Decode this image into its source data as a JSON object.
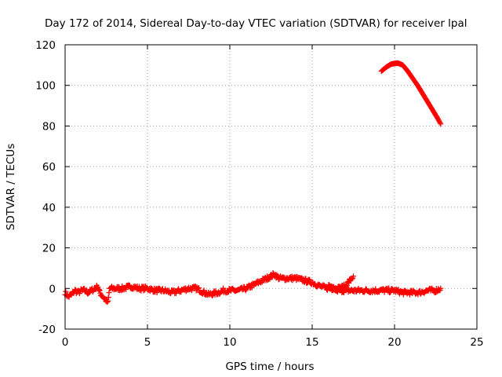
{
  "chart_data": {
    "type": "scatter",
    "title": "Day 172 of 2014, Sidereal Day-to-day VTEC variation (SDTVAR) for receiver lpal",
    "xlabel": "GPS time / hours",
    "ylabel": "SDTVAR / TECUs",
    "xlim": [
      0,
      25
    ],
    "ylim": [
      -20,
      120
    ],
    "xticks": [
      0,
      5,
      10,
      15,
      20,
      25
    ],
    "yticks": [
      -20,
      0,
      20,
      40,
      60,
      80,
      100,
      120
    ],
    "grid": true,
    "marker": "+",
    "color": "#ff0000",
    "series": [
      {
        "name": "SDTVAR",
        "points": [
          [
            0.0,
            -2
          ],
          [
            0.2,
            -4
          ],
          [
            0.4,
            -3
          ],
          [
            0.6,
            -1
          ],
          [
            0.8,
            -2
          ],
          [
            1.0,
            -1
          ],
          [
            1.2,
            -1
          ],
          [
            1.4,
            -2
          ],
          [
            1.6,
            -1
          ],
          [
            1.8,
            0
          ],
          [
            2.0,
            1
          ],
          [
            2.1,
            -2
          ],
          [
            2.2,
            -3
          ],
          [
            2.4,
            -5
          ],
          [
            2.6,
            -7
          ],
          [
            2.7,
            0
          ],
          [
            3.0,
            0
          ],
          [
            3.5,
            0
          ],
          [
            4.0,
            1
          ],
          [
            4.5,
            0
          ],
          [
            5.0,
            0
          ],
          [
            5.5,
            -1
          ],
          [
            6.0,
            -1
          ],
          [
            6.5,
            -2
          ],
          [
            7.0,
            -1
          ],
          [
            7.5,
            0
          ],
          [
            8.0,
            0
          ],
          [
            8.2,
            -1
          ],
          [
            8.7,
            -3
          ],
          [
            9.3,
            -2
          ],
          [
            9.6,
            -1
          ],
          [
            10.0,
            -1
          ],
          [
            10.5,
            -1
          ],
          [
            11.0,
            0
          ],
          [
            11.5,
            2
          ],
          [
            12.0,
            4
          ],
          [
            12.5,
            6
          ],
          [
            12.7,
            7
          ],
          [
            13.0,
            5
          ],
          [
            13.5,
            5
          ],
          [
            14.0,
            5
          ],
          [
            14.5,
            4
          ],
          [
            15.0,
            3
          ],
          [
            15.5,
            1
          ],
          [
            16.0,
            0
          ],
          [
            16.5,
            0
          ],
          [
            17.0,
            1
          ],
          [
            17.3,
            4
          ],
          [
            17.5,
            6
          ],
          [
            16.0,
            1
          ],
          [
            16.5,
            -1
          ],
          [
            17.0,
            -1
          ],
          [
            17.5,
            -1
          ],
          [
            18.0,
            -1
          ],
          [
            18.5,
            -1
          ],
          [
            19.0,
            -1
          ],
          [
            19.5,
            -1
          ],
          [
            20.0,
            -1
          ],
          [
            20.5,
            -2
          ],
          [
            21.0,
            -2
          ],
          [
            21.5,
            -2
          ],
          [
            22.0,
            -1
          ],
          [
            22.5,
            -1
          ],
          [
            22.8,
            0
          ],
          [
            19.2,
            107
          ],
          [
            19.5,
            109
          ],
          [
            19.8,
            110.5
          ],
          [
            20.2,
            111
          ],
          [
            20.5,
            110
          ],
          [
            20.8,
            107
          ],
          [
            21.1,
            103.5
          ],
          [
            21.4,
            100
          ],
          [
            21.7,
            96
          ],
          [
            22.0,
            92
          ],
          [
            22.3,
            88
          ],
          [
            22.6,
            84
          ],
          [
            22.8,
            81
          ]
        ]
      }
    ]
  }
}
